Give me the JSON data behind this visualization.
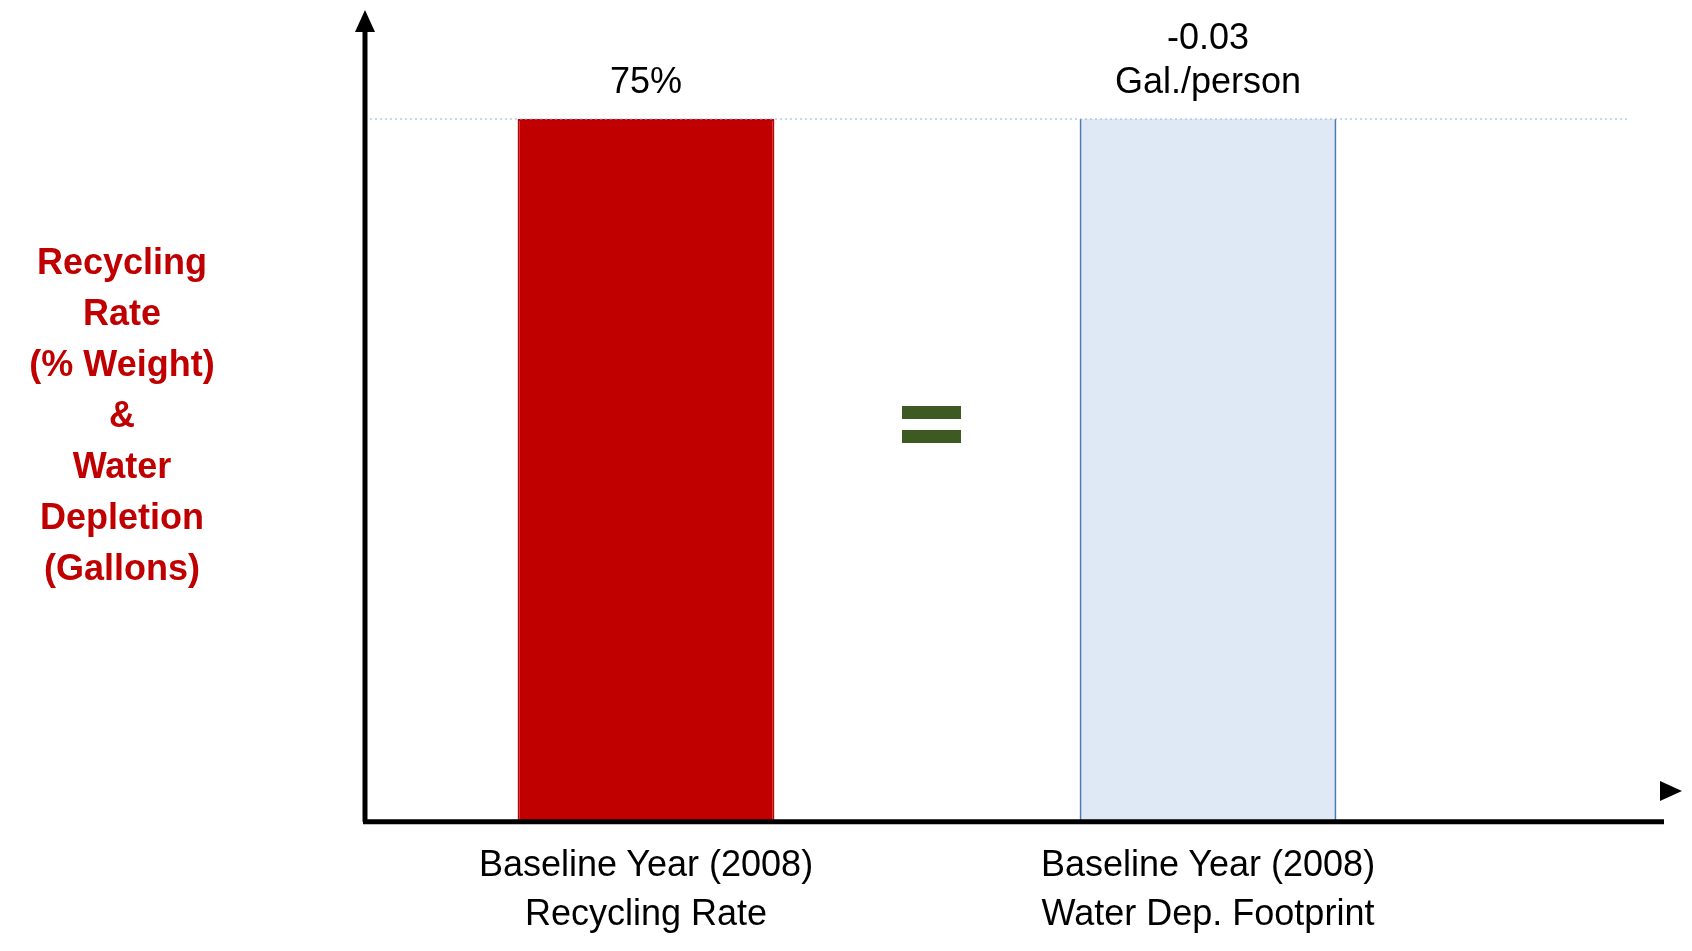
{
  "chart_data": {
    "type": "bar",
    "ylabel": "Recycling Rate\n(% Weight)\n&\nWater Depletion\n(Gallons)",
    "categories": [
      "Baseline Year (2008) Recycling Rate",
      "Baseline Year (2008) Water Dep. Footprint"
    ],
    "series": [
      {
        "color": "#c00000",
        "values": [
          75,
          null
        ],
        "value_labels": [
          "75%",
          null
        ]
      },
      {
        "color": "#dee9f5",
        "values": [
          null,
          -0.03
        ],
        "axis": "y2",
        "value_labels": [
          null,
          "-0.03\nGal./person"
        ]
      }
    ],
    "ylim": [
      0,
      75
    ],
    "y2lim": [
      -0.03,
      0
    ],
    "tick_labels": "x",
    "ref_lines": [
      {
        "axis": "y",
        "value": 75,
        "color": "#8fb4e3",
        "line_style": "dotted"
      }
    ]
  }
}
